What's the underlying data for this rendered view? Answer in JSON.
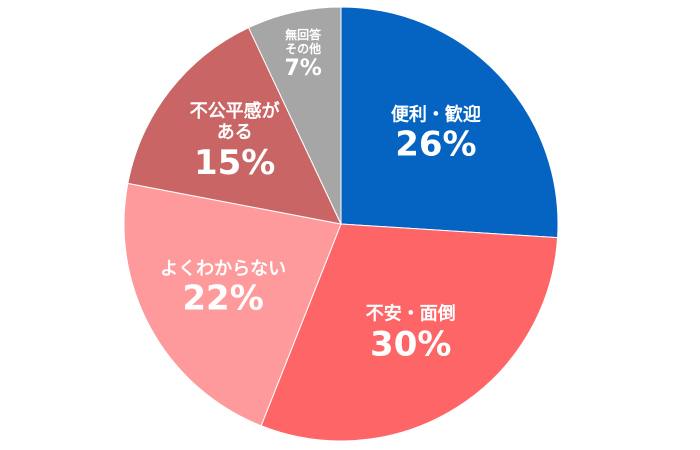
{
  "chart_data": {
    "type": "pie",
    "categories": [
      "便利・歓迎",
      "不安・面倒",
      "よくわからない",
      "不公平感がある",
      "無回答その他"
    ],
    "values": [
      26,
      30,
      22,
      15,
      7
    ],
    "value_labels": [
      "26%",
      "30%",
      "22%",
      "15%",
      "7%"
    ],
    "colors": [
      "#0563c1",
      "#fe6567",
      "#fe9a9b",
      "#c96565",
      "#a6a6a6"
    ]
  }
}
